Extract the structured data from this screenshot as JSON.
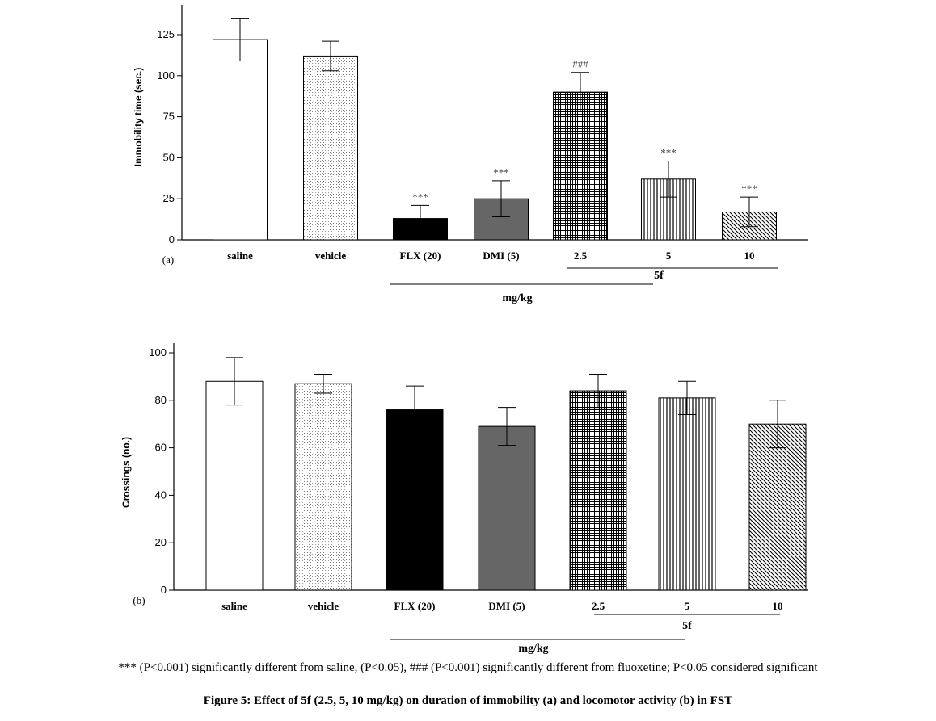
{
  "chart_data": [
    {
      "type": "bar",
      "panel": "(a)",
      "ylabel": "Immobility time (sec.)",
      "ylim": [
        0,
        125
      ],
      "yticks": [
        0,
        25,
        50,
        75,
        100,
        125
      ],
      "categories": [
        "saline",
        "vehicle",
        "FLX (20)",
        "DMI (5)",
        "2.5",
        "5",
        "10"
      ],
      "values": [
        122,
        112,
        13,
        25,
        90,
        37,
        17
      ],
      "errors": [
        13,
        9,
        8,
        11,
        12,
        11,
        9
      ],
      "annotations": [
        "",
        "",
        "***",
        "***",
        "###",
        "***",
        "***"
      ],
      "group_label": "5f",
      "unit_label": "mg/kg",
      "fills": [
        "white",
        "dots",
        "black",
        "darkgray",
        "grid",
        "vlines",
        "diag"
      ]
    },
    {
      "type": "bar",
      "panel": "(b)",
      "ylabel": "Crossings (no.)",
      "ylim": [
        0,
        100
      ],
      "yticks": [
        0,
        20,
        40,
        60,
        80,
        100
      ],
      "categories": [
        "saline",
        "vehicle",
        "FLX (20)",
        "DMI (5)",
        "2.5",
        "5",
        "10"
      ],
      "values": [
        88,
        87,
        76,
        69,
        84,
        81,
        70
      ],
      "errors": [
        10,
        4,
        10,
        8,
        7,
        7,
        10
      ],
      "annotations": [
        "",
        "",
        "",
        "",
        "",
        "",
        ""
      ],
      "group_label": "5f",
      "unit_label": "mg/kg",
      "fills": [
        "white",
        "dots",
        "black",
        "darkgray",
        "grid",
        "vlines",
        "diag"
      ]
    }
  ],
  "footnote": "*** (P<0.001) significantly different from saline, (P<0.05), ### (P<0.001) significantly different from fluoxetine; P<0.05 considered significant",
  "caption": "Figure 5: Effect of 5f (2.5, 5, 10 mg/kg) on duration of immobility (a) and locomotor activity (b) in FST",
  "colors": {
    "black_bar": "#000000",
    "darkgray_bar": "#666666",
    "axis": "#000000"
  }
}
